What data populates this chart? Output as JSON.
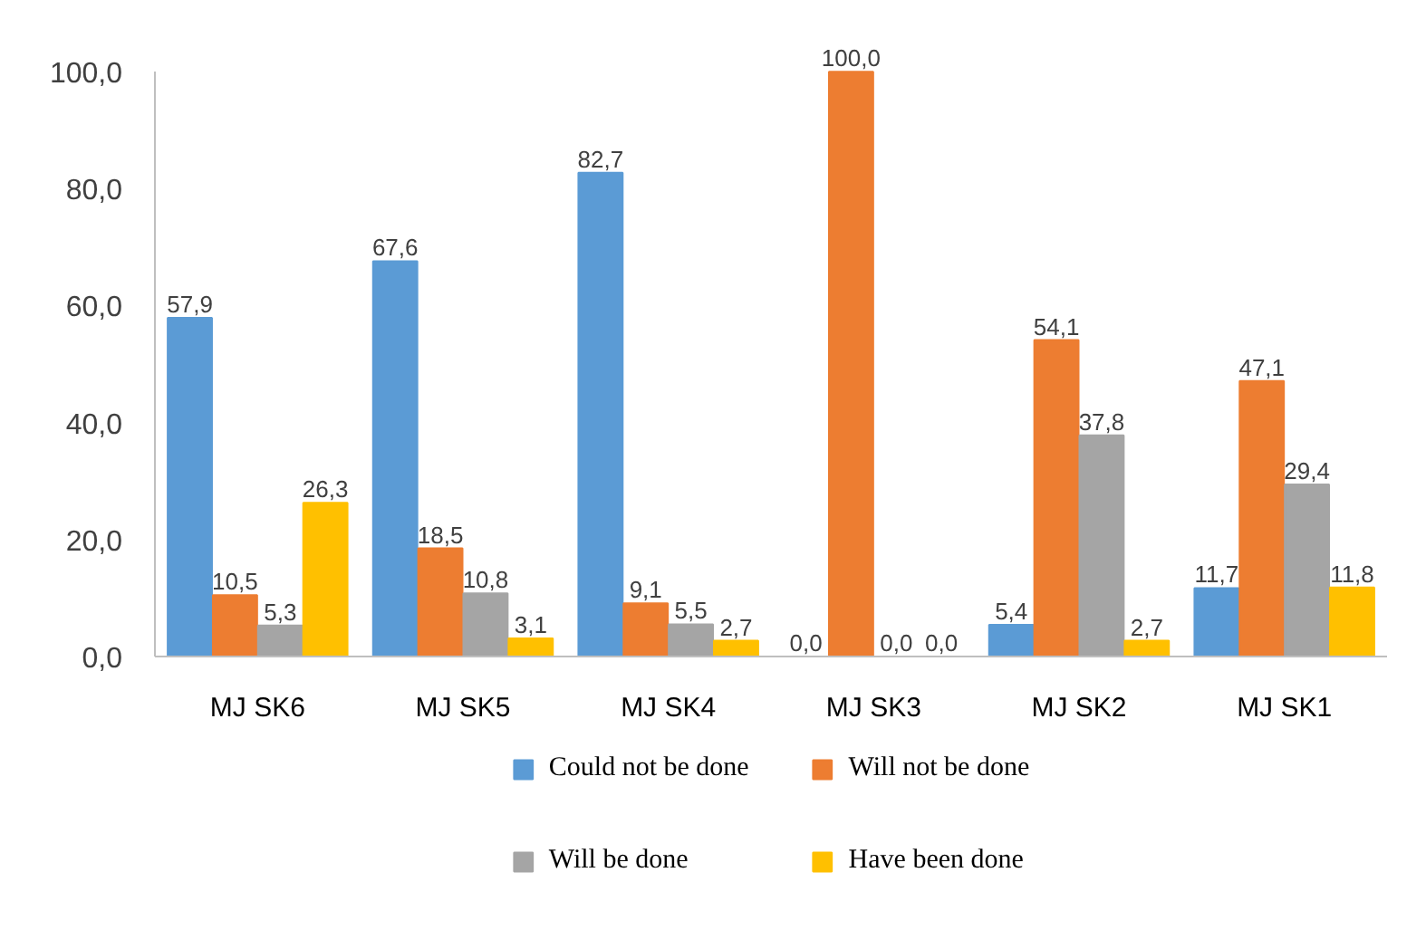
{
  "chart_data": {
    "type": "bar",
    "categories": [
      "MJ SK6",
      "MJ SK5",
      "MJ SK4",
      "MJ SK3",
      "MJ SK2",
      "MJ SK1"
    ],
    "series": [
      {
        "name": "Could not be done",
        "color": "#5b9bd5",
        "values": [
          57.9,
          67.6,
          82.7,
          0.0,
          5.4,
          11.7
        ],
        "value_labels": [
          "57,9",
          "67,6",
          "82,7",
          "0,0",
          "5,4",
          "11,7"
        ]
      },
      {
        "name": "Will not be done",
        "color": "#ed7d31",
        "values": [
          10.5,
          18.5,
          9.1,
          100.0,
          54.1,
          47.1
        ],
        "value_labels": [
          "10,5",
          "18,5",
          "9,1",
          "100,0",
          "54,1",
          "47,1"
        ]
      },
      {
        "name": "Will be done",
        "color": "#a5a5a5",
        "values": [
          5.3,
          10.8,
          5.5,
          0.0,
          37.8,
          29.4
        ],
        "value_labels": [
          "5,3",
          "10,8",
          "5,5",
          "0,0",
          "37,8",
          "29,4"
        ]
      },
      {
        "name": "Have been done",
        "color": "#ffc000",
        "values": [
          26.3,
          3.1,
          2.7,
          0.0,
          2.7,
          11.8
        ],
        "value_labels": [
          "26,3",
          "3,1",
          "2,7",
          "0,0",
          "2,7",
          "11,8"
        ]
      }
    ],
    "ylim": [
      0,
      100
    ],
    "yticks": [
      {
        "value": 0,
        "label": "0,0"
      },
      {
        "value": 20,
        "label": "20,0"
      },
      {
        "value": 40,
        "label": "40,0"
      },
      {
        "value": 60,
        "label": "60,0"
      },
      {
        "value": 80,
        "label": "80,0"
      },
      {
        "value": 100,
        "label": "100,0"
      }
    ],
    "grid": false,
    "legend": "bottom"
  }
}
